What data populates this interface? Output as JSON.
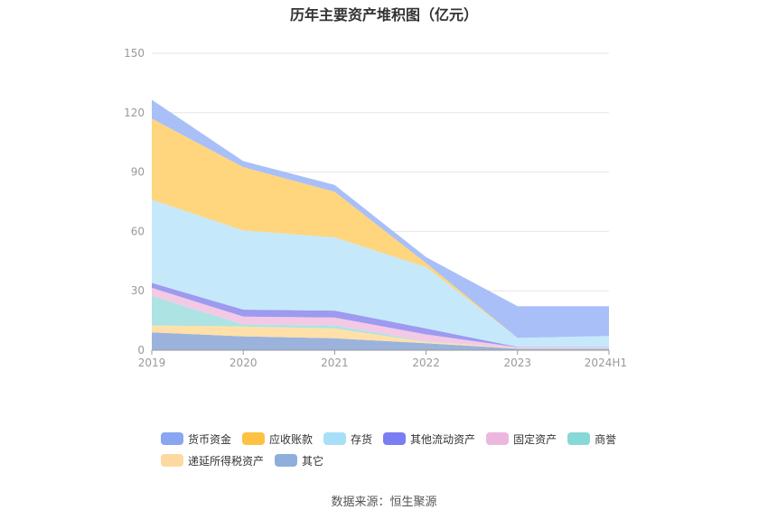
{
  "chart_data": {
    "type": "area",
    "stacked": true,
    "title": "历年主要资产堆积图（亿元）",
    "categories": [
      "2019",
      "2020",
      "2021",
      "2022",
      "2023",
      "2024H1"
    ],
    "ylim": [
      0,
      150
    ],
    "yticks": [
      0,
      30,
      60,
      90,
      120,
      150
    ],
    "grid": true,
    "legend_position": "bottom",
    "series": [
      {
        "name": "其它",
        "color": "#9bb3dc",
        "values": [
          9,
          7,
          6,
          3.5,
          0.8,
          0.8
        ]
      },
      {
        "name": "递延所得税资产",
        "color": "#ffe0a8",
        "values": [
          3.5,
          5,
          5,
          0.8,
          0.2,
          0.2
        ]
      },
      {
        "name": "商誉",
        "color": "#aee3e3",
        "values": [
          15,
          1,
          1.5,
          0.2,
          0,
          0
        ]
      },
      {
        "name": "固定资产",
        "color": "#f3c9e6",
        "values": [
          4,
          4,
          4,
          3.5,
          0.5,
          0.5
        ]
      },
      {
        "name": "其他流动资产",
        "color": "#9d9af0",
        "values": [
          2.5,
          3.5,
          3.5,
          3,
          0.2,
          0.2
        ]
      },
      {
        "name": "存货",
        "color": "#c5e9fb",
        "values": [
          42,
          40,
          37,
          31,
          4.5,
          5.5
        ]
      },
      {
        "name": "应收账款",
        "color": "#ffd57e",
        "values": [
          41,
          32,
          23,
          2,
          0,
          0
        ]
      },
      {
        "name": "货币资金",
        "color": "#a9bff7",
        "values": [
          9.5,
          3,
          3.5,
          3,
          16,
          15
        ]
      }
    ]
  },
  "legend": {
    "items": [
      {
        "label": "货币资金",
        "color": "#8aa6f2"
      },
      {
        "label": "应收账款",
        "color": "#fdc244"
      },
      {
        "label": "存货",
        "color": "#a8dff8"
      },
      {
        "label": "其他流动资产",
        "color": "#7b7ef2"
      },
      {
        "label": "固定资产",
        "color": "#ecb7de"
      },
      {
        "label": "商誉",
        "color": "#88d8d8"
      },
      {
        "label": "递延所得税资产",
        "color": "#fdd9a0"
      },
      {
        "label": "其它",
        "color": "#8eaedc"
      }
    ]
  },
  "source": "数据来源：恒生聚源"
}
